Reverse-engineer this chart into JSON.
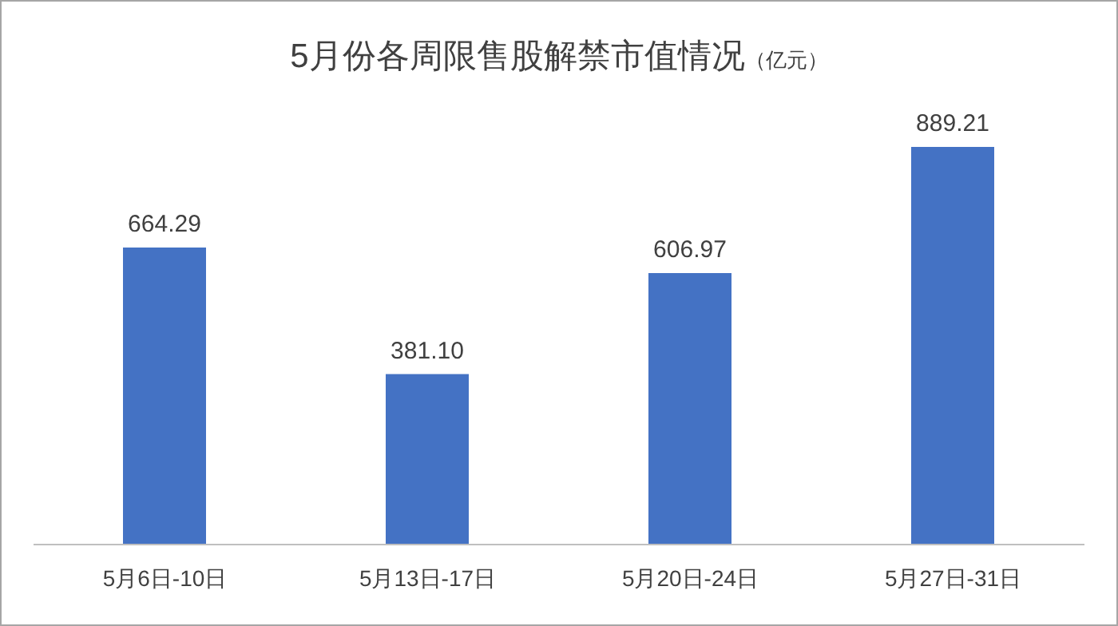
{
  "chart_data": {
    "type": "bar",
    "title": "5月份各周限售股解禁市值情况",
    "subtitle": "（亿元）",
    "categories": [
      "5月6日-10日",
      "5月13日-17日",
      "5月20日-24日",
      "5月27日-31日"
    ],
    "values": [
      664.29,
      381.1,
      606.97,
      889.21
    ],
    "value_labels": [
      "664.29",
      "381.10",
      "606.97",
      "889.21"
    ],
    "color": "#4472c4",
    "grid": false,
    "legend": false
  }
}
